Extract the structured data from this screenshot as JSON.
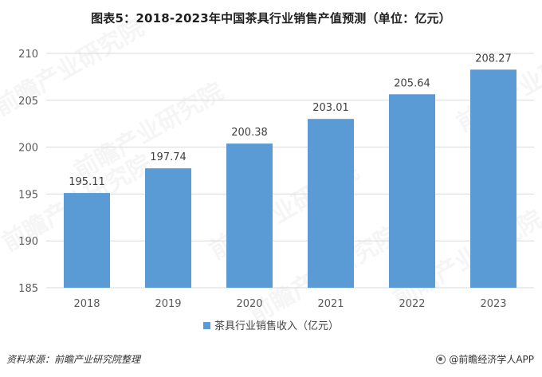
{
  "title": "图表5：2018-2023年中国茶具行业销售产值预测（单位：亿元）",
  "source": "资料来源：前瞻产业研究院整理",
  "footer_brand": "@前瞻经济学人APP",
  "watermark_text": "前瞻产业研究院",
  "colors": {
    "bar": "#5b9bd5",
    "grid": "#d9d9d9",
    "axis_text": "#595959"
  },
  "chart_data": {
    "type": "bar",
    "title": "图表5：2018-2023年中国茶具行业销售产值预测（单位：亿元）",
    "categories": [
      "2018",
      "2019",
      "2020",
      "2021",
      "2022",
      "2023"
    ],
    "series": [
      {
        "name": "茶具行业销售收入（亿元）",
        "values": [
          195.11,
          197.74,
          200.38,
          203.01,
          205.64,
          208.27
        ]
      }
    ],
    "data_labels": [
      "195.11",
      "197.74",
      "200.38",
      "203.01",
      "205.64",
      "208.27"
    ],
    "y_ticks": [
      "185",
      "190",
      "195",
      "200",
      "205",
      "210"
    ],
    "ylim": [
      185,
      210
    ],
    "xlabel": "",
    "ylabel": "",
    "grid": true,
    "legend": "bottom"
  }
}
